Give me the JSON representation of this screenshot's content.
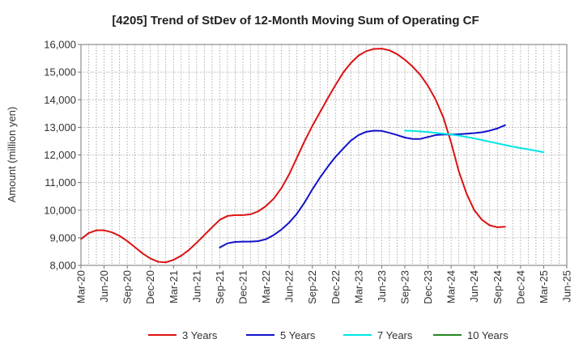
{
  "chart_data": {
    "type": "line",
    "title": "[4205]  Trend of StDev of 12-Month Moving Sum of Operating CF",
    "xlabel": "",
    "ylabel": "Amount (million yen)",
    "ylim": [
      8000,
      16000
    ],
    "yticks": [
      8000,
      9000,
      10000,
      11000,
      12000,
      13000,
      14000,
      15000,
      16000
    ],
    "ytick_labels": [
      "8,000",
      "9,000",
      "10,000",
      "11,000",
      "12,000",
      "13,000",
      "14,000",
      "15,000",
      "16,000"
    ],
    "x_tick_labels": [
      "Mar-20",
      "Jun-20",
      "Sep-20",
      "Dec-20",
      "Mar-21",
      "Jun-21",
      "Sep-21",
      "Dec-21",
      "Mar-22",
      "Jun-22",
      "Sep-22",
      "Dec-22",
      "Mar-23",
      "Jun-23",
      "Sep-23",
      "Dec-23",
      "Mar-24",
      "Jun-24",
      "Sep-24",
      "Dec-24",
      "Mar-25",
      "Jun-25"
    ],
    "grid": true,
    "legend_position": "bottom",
    "series": [
      {
        "name": "3 Years",
        "color": "#dd1111",
        "start_index": 0,
        "values": [
          8950,
          9170,
          9270,
          9270,
          9200,
          9070,
          8880,
          8660,
          8430,
          8250,
          8130,
          8110,
          8200,
          8350,
          8560,
          8820,
          9100,
          9380,
          9650,
          9790,
          9820,
          9820,
          9850,
          9960,
          10150,
          10420,
          10800,
          11300,
          11900,
          12500,
          13050,
          13550,
          14050,
          14530,
          14980,
          15330,
          15600,
          15760,
          15840,
          15850,
          15790,
          15650,
          15450,
          15200,
          14900,
          14500,
          14000,
          13350,
          12450,
          11400,
          10600,
          10000,
          9650,
          9450,
          9380,
          9400
        ]
      },
      {
        "name": "5 Years",
        "color": "#1111cc",
        "start_index": 18,
        "values": [
          8650,
          8800,
          8850,
          8860,
          8860,
          8880,
          8950,
          9100,
          9300,
          9550,
          9870,
          10280,
          10750,
          11180,
          11570,
          11930,
          12230,
          12520,
          12720,
          12840,
          12880,
          12870,
          12800,
          12720,
          12630,
          12580,
          12580,
          12650,
          12720,
          12740,
          12740,
          12750,
          12770,
          12790,
          12820,
          12880,
          12960,
          13080
        ]
      },
      {
        "name": "7 Years",
        "color": "#00e5e5",
        "start_index": 42,
        "values": [
          12880,
          12870,
          12850,
          12830,
          12800,
          12770,
          12740,
          12700,
          12650,
          12600,
          12540,
          12480,
          12420,
          12360,
          12300,
          12250,
          12200,
          12150,
          12100
        ]
      },
      {
        "name": "10 Years",
        "color": "#228822",
        "start_index": 0,
        "values": []
      }
    ]
  }
}
